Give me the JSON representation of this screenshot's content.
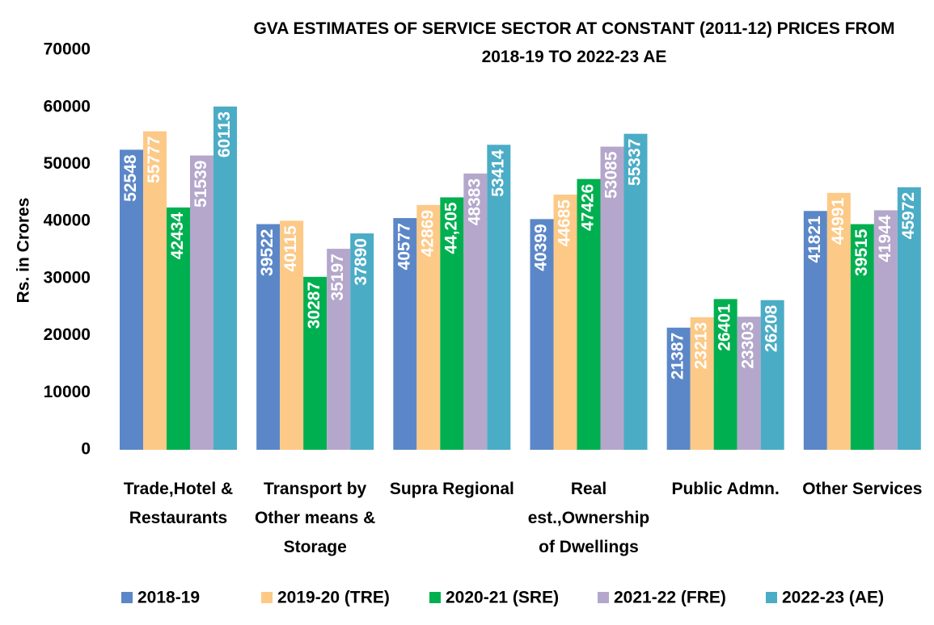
{
  "chart_data": {
    "type": "bar",
    "title": "GVA ESTIMATES OF SERVICE SECTOR AT CONSTANT (2011-12) PRICES  FROM 2018-19  TO 2022-23 AE",
    "ylabel": "Rs. in Crores",
    "categories": [
      "Trade,Hotel & Restaurants",
      "Transport by Other means & Storage",
      "Supra Regional",
      "Real est.,Ownership of  Dwellings",
      "Public Admn.",
      "Other Services"
    ],
    "series": [
      {
        "name": "2018-19",
        "color": "#5b87c8",
        "values": [
          52548,
          39522,
          40577,
          40399,
          21387,
          41821
        ]
      },
      {
        "name": "2019-20 (TRE)",
        "color": "#fdc987",
        "values": [
          55777,
          40115,
          42869,
          44685,
          23213,
          44991
        ]
      },
      {
        "name": "2020-21 (SRE)",
        "color": "#00b050",
        "values": [
          42434,
          30287,
          44205,
          47426,
          26401,
          39515
        ],
        "value_labels": [
          "42434",
          "30287",
          "44,205",
          "47426",
          "26401",
          "39515"
        ]
      },
      {
        "name": "2021-22 (FRE)",
        "color": "#b4a7cb",
        "values": [
          51539,
          35197,
          48383,
          53085,
          23303,
          41944
        ]
      },
      {
        "name": "2022-23 (AE)",
        "color": "#4bacc6",
        "values": [
          60113,
          37890,
          53414,
          55337,
          26208,
          45972
        ]
      }
    ],
    "ylim": [
      0,
      70000
    ],
    "yticks": [
      0,
      10000,
      20000,
      30000,
      40000,
      50000,
      60000,
      70000
    ],
    "grid": false,
    "legend": "bottom"
  }
}
